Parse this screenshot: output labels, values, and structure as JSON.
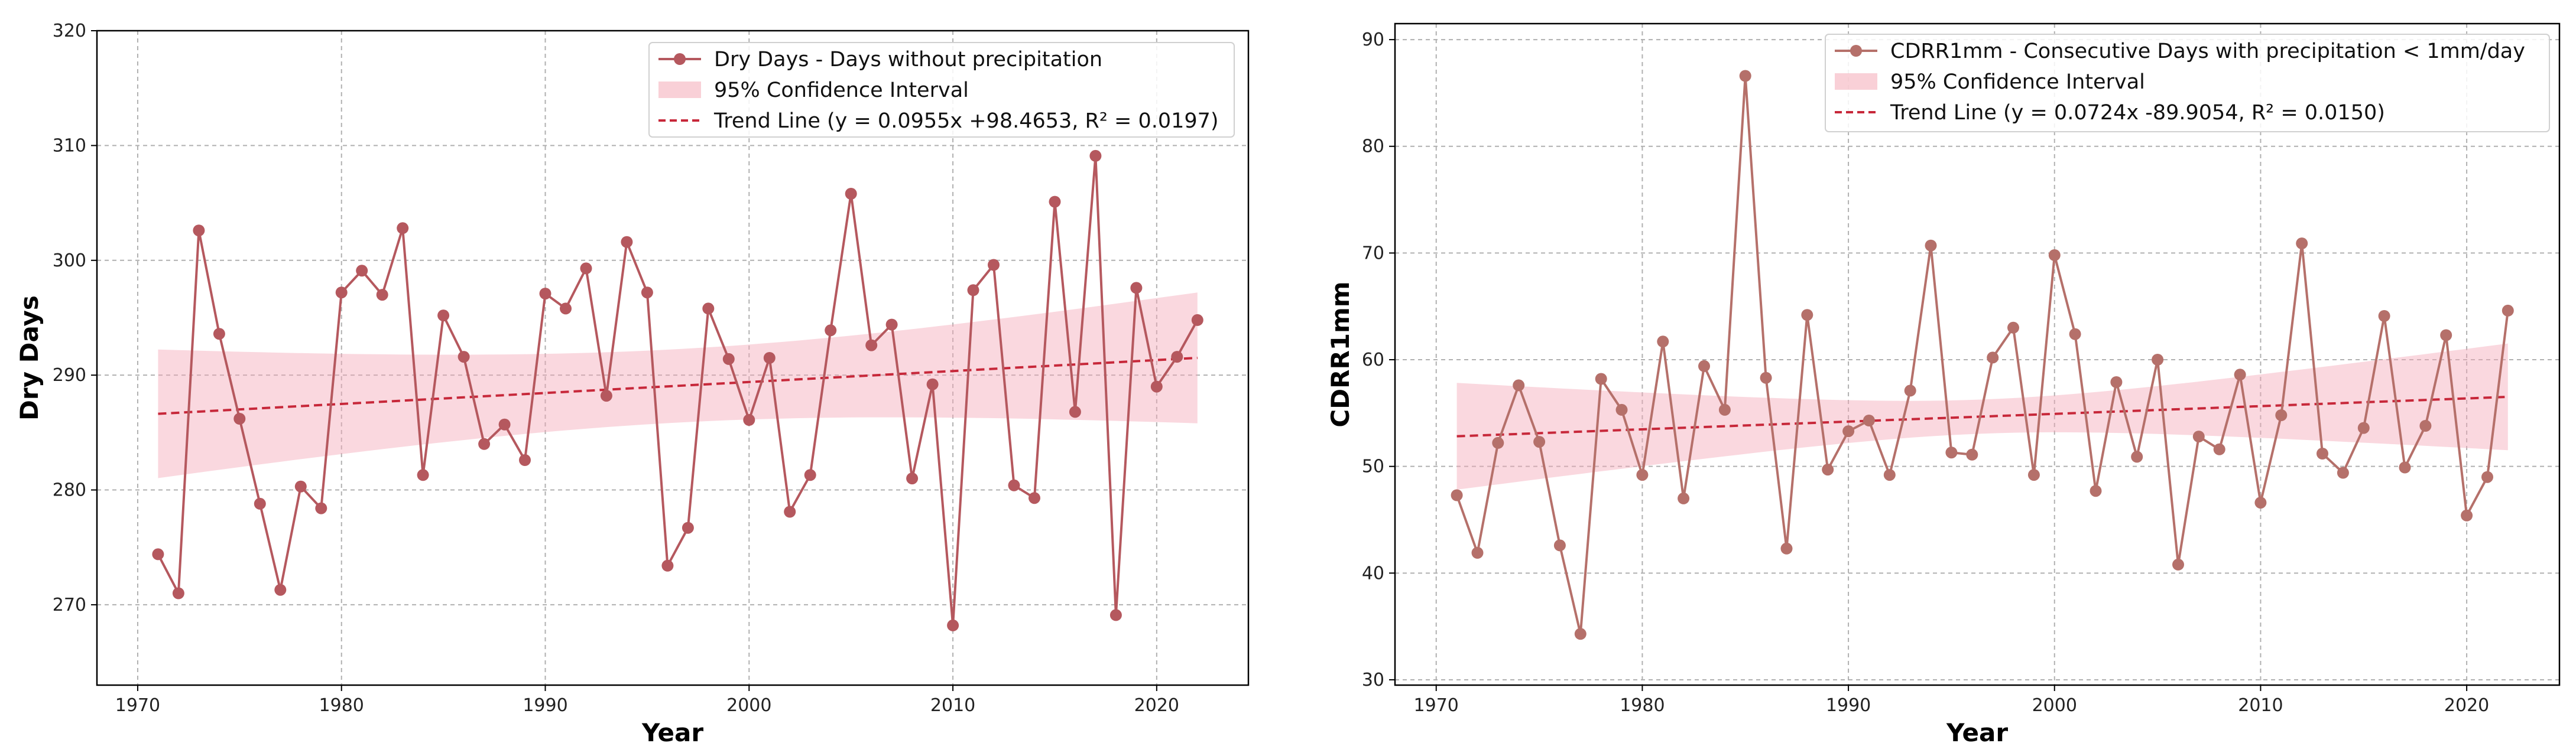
{
  "colors": {
    "series1": "#b5585e",
    "series2": "#b5706a",
    "band": "#f4a9b7",
    "trend": "#c7283a"
  },
  "chart_data": [
    {
      "type": "line",
      "title": "",
      "xlabel": "Year",
      "ylabel": "Dry Days",
      "xlim": [
        1968,
        2024.5
      ],
      "ylim": [
        263,
        320
      ],
      "xticks": [
        "1970",
        "1980",
        "1990",
        "2000",
        "2010",
        "2020"
      ],
      "yticks": [
        "270",
        "280",
        "290",
        "300",
        "310",
        "320"
      ],
      "legend_position": "top-right",
      "x": [
        1971,
        1972,
        1973,
        1974,
        1975,
        1976,
        1977,
        1978,
        1979,
        1980,
        1981,
        1982,
        1983,
        1984,
        1985,
        1986,
        1987,
        1988,
        1989,
        1990,
        1991,
        1992,
        1993,
        1994,
        1995,
        1996,
        1997,
        1998,
        1999,
        2000,
        2001,
        2002,
        2003,
        2004,
        2005,
        2006,
        2007,
        2008,
        2009,
        2010,
        2011,
        2012,
        2013,
        2014,
        2015,
        2016,
        2017,
        2018,
        2019,
        2020,
        2021,
        2022
      ],
      "series": [
        {
          "name": "Dry Days - Days without precipitation",
          "values": [
            274.4,
            271,
            302.6,
            293.6,
            286.2,
            278.8,
            271.3,
            280.3,
            278.4,
            297.2,
            299.1,
            297,
            302.8,
            281.3,
            295.2,
            291.6,
            284,
            285.7,
            282.6,
            297.1,
            295.8,
            299.3,
            288.2,
            301.6,
            297.2,
            273.4,
            276.7,
            295.8,
            291.4,
            286.1,
            291.5,
            278.1,
            281.3,
            293.9,
            305.8,
            292.6,
            294.4,
            281,
            289.2,
            268.2,
            297.4,
            299.6,
            280.4,
            279.3,
            305.1,
            286.8,
            309.1,
            269.1,
            297.6,
            289,
            291.6,
            294.8
          ]
        }
      ],
      "ci_label": "95% Confidence Interval",
      "ci_halfwidth_start": 5.6,
      "ci_halfwidth_mid": 3.2,
      "ci_halfwidth_end": 5.7,
      "trend": {
        "label": "Trend Line (y = 0.0955x +98.4653, R² = 0.0197)",
        "slope": 0.0955,
        "intercept": 98.4653,
        "r2": 0.0197
      }
    },
    {
      "type": "line",
      "title": "",
      "xlabel": "Year",
      "ylabel": "CDRR1mm",
      "xlim": [
        1968,
        2024.5
      ],
      "ylim": [
        29.5,
        91.5
      ],
      "xticks": [
        "1970",
        "1980",
        "1990",
        "2000",
        "2010",
        "2020"
      ],
      "yticks": [
        "30",
        "40",
        "50",
        "60",
        "70",
        "80",
        "90"
      ],
      "legend_position": "top-right",
      "x": [
        1971,
        1972,
        1973,
        1974,
        1975,
        1976,
        1977,
        1978,
        1979,
        1980,
        1981,
        1982,
        1983,
        1984,
        1985,
        1986,
        1987,
        1988,
        1989,
        1990,
        1991,
        1992,
        1993,
        1994,
        1995,
        1996,
        1997,
        1998,
        1999,
        2000,
        2001,
        2002,
        2003,
        2004,
        2005,
        2006,
        2007,
        2008,
        2009,
        2010,
        2011,
        2012,
        2013,
        2014,
        2015,
        2016,
        2017,
        2018,
        2019,
        2020,
        2021,
        2022
      ],
      "series": [
        {
          "name": "CDRR1mm - Consecutive Days with precipitation < 1mm/day",
          "values": [
            47.3,
            41.9,
            52.2,
            57.6,
            52.3,
            42.6,
            34.3,
            58.2,
            55.3,
            49.2,
            61.7,
            47,
            59.4,
            55.3,
            86.6,
            58.3,
            42.3,
            64.2,
            49.7,
            53.3,
            54.3,
            49.2,
            57.1,
            70.7,
            51.3,
            51.1,
            60.2,
            63,
            49.2,
            69.8,
            62.4,
            47.7,
            57.9,
            50.9,
            60,
            40.8,
            52.8,
            51.6,
            58.6,
            46.6,
            54.8,
            70.9,
            51.2,
            49.4,
            53.6,
            64.1,
            49.9,
            53.8,
            62.3,
            45.4,
            49,
            64.6
          ]
        }
      ],
      "ci_label": "95% Confidence Interval",
      "ci_halfwidth_start": 5,
      "ci_halfwidth_mid": 1.6,
      "ci_halfwidth_end": 5,
      "trend": {
        "label": "Trend Line (y = 0.0724x -89.9054, R² = 0.0150)",
        "slope": 0.0724,
        "intercept": -89.9054,
        "r2": 0.015
      }
    }
  ]
}
